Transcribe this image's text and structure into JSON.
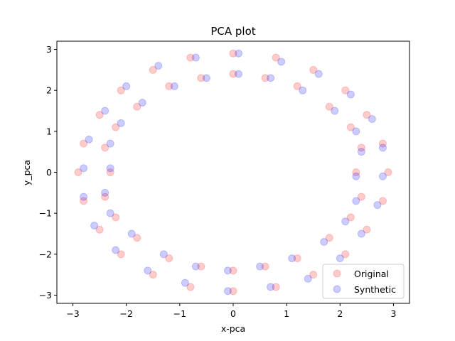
{
  "chart_data": {
    "type": "scatter",
    "title": "PCA plot",
    "xlabel": "x-pca",
    "ylabel": "y_pca",
    "xlim": [
      -3.3,
      3.3
    ],
    "ylim": [
      -3.2,
      3.2
    ],
    "xticks": [
      -3,
      -2,
      -1,
      0,
      1,
      2,
      3
    ],
    "yticks": [
      -3,
      -2,
      -1,
      0,
      1,
      2,
      3
    ],
    "grid": false,
    "legend_position": "lower-right",
    "series": [
      {
        "name": "Original",
        "color": "#ff0000",
        "alpha": 0.2,
        "marker": "circle",
        "points": [
          [
            -2.8,
            0.7
          ],
          [
            -2.5,
            1.4
          ],
          [
            -2.1,
            2.0
          ],
          [
            -1.5,
            2.5
          ],
          [
            -0.8,
            2.8
          ],
          [
            0.0,
            2.9
          ],
          [
            0.8,
            2.8
          ],
          [
            1.5,
            2.5
          ],
          [
            2.1,
            2.0
          ],
          [
            2.5,
            1.4
          ],
          [
            2.8,
            0.7
          ],
          [
            2.9,
            0.0
          ],
          [
            2.8,
            -0.7
          ],
          [
            2.5,
            -1.4
          ],
          [
            2.1,
            -2.0
          ],
          [
            1.5,
            -2.5
          ],
          [
            0.8,
            -2.8
          ],
          [
            0.0,
            -2.9
          ],
          [
            -0.8,
            -2.8
          ],
          [
            -1.5,
            -2.5
          ],
          [
            -2.1,
            -2.0
          ],
          [
            -2.5,
            -1.4
          ],
          [
            -2.8,
            -0.7
          ],
          [
            -2.9,
            0.0
          ],
          [
            -2.4,
            0.6
          ],
          [
            -2.2,
            1.1
          ],
          [
            -1.8,
            1.6
          ],
          [
            -1.2,
            2.1
          ],
          [
            -0.6,
            2.3
          ],
          [
            0.0,
            2.4
          ],
          [
            0.6,
            2.3
          ],
          [
            1.2,
            2.1
          ],
          [
            1.8,
            1.6
          ],
          [
            2.2,
            1.1
          ],
          [
            2.4,
            0.6
          ],
          [
            2.3,
            0.0
          ],
          [
            2.4,
            -0.6
          ],
          [
            2.2,
            -1.1
          ],
          [
            1.8,
            -1.6
          ],
          [
            1.2,
            -2.1
          ],
          [
            0.6,
            -2.3
          ],
          [
            0.0,
            -2.4
          ],
          [
            -0.6,
            -2.3
          ],
          [
            -1.2,
            -2.1
          ],
          [
            -1.8,
            -1.6
          ],
          [
            -2.2,
            -1.1
          ],
          [
            -2.4,
            -0.6
          ],
          [
            -2.3,
            0.0
          ]
        ]
      },
      {
        "name": "Synthetic",
        "color": "#0000ff",
        "alpha": 0.2,
        "marker": "circle",
        "points": [
          [
            -2.7,
            0.8
          ],
          [
            -2.4,
            1.5
          ],
          [
            -2.0,
            2.1
          ],
          [
            -1.4,
            2.6
          ],
          [
            -0.7,
            2.8
          ],
          [
            0.1,
            2.9
          ],
          [
            0.9,
            2.7
          ],
          [
            1.6,
            2.4
          ],
          [
            2.2,
            1.9
          ],
          [
            2.6,
            1.3
          ],
          [
            2.8,
            0.6
          ],
          [
            2.8,
            -0.1
          ],
          [
            2.7,
            -0.8
          ],
          [
            2.4,
            -1.5
          ],
          [
            2.0,
            -2.1
          ],
          [
            1.4,
            -2.6
          ],
          [
            0.7,
            -2.8
          ],
          [
            -0.1,
            -2.9
          ],
          [
            -0.9,
            -2.7
          ],
          [
            -1.6,
            -2.4
          ],
          [
            -2.2,
            -1.9
          ],
          [
            -2.6,
            -1.3
          ],
          [
            -2.8,
            -0.6
          ],
          [
            -2.8,
            0.1
          ],
          [
            -2.3,
            0.7
          ],
          [
            -2.1,
            1.2
          ],
          [
            -1.7,
            1.7
          ],
          [
            -1.1,
            2.1
          ],
          [
            -0.5,
            2.3
          ],
          [
            0.1,
            2.4
          ],
          [
            0.7,
            2.3
          ],
          [
            1.3,
            2.0
          ],
          [
            1.9,
            1.5
          ],
          [
            2.3,
            1.0
          ],
          [
            2.4,
            0.5
          ],
          [
            2.3,
            -0.1
          ],
          [
            2.3,
            -0.7
          ],
          [
            2.1,
            -1.2
          ],
          [
            1.7,
            -1.7
          ],
          [
            1.1,
            -2.1
          ],
          [
            0.5,
            -2.3
          ],
          [
            -0.1,
            -2.4
          ],
          [
            -0.7,
            -2.3
          ],
          [
            -1.3,
            -2.0
          ],
          [
            -1.9,
            -1.5
          ],
          [
            -2.3,
            -1.0
          ],
          [
            -2.4,
            -0.5
          ],
          [
            -2.3,
            0.1
          ]
        ]
      }
    ]
  }
}
